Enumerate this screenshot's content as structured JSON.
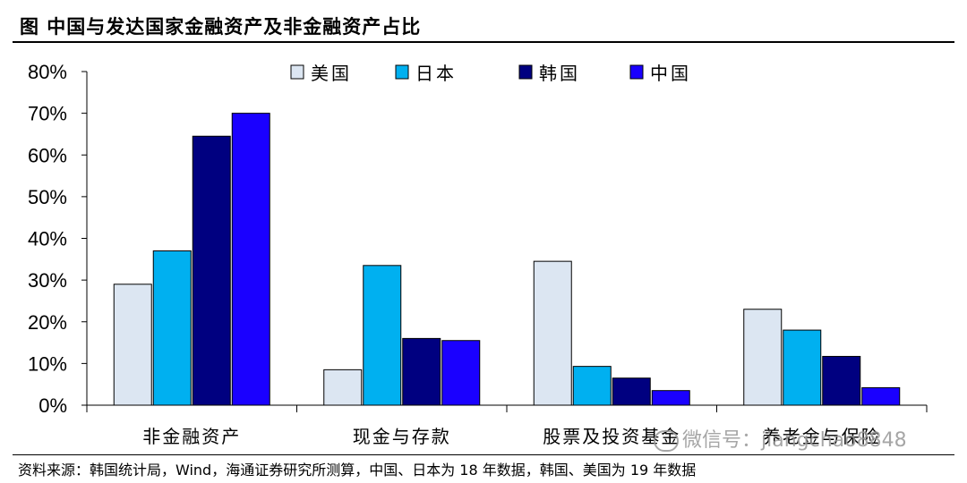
{
  "header": {
    "title": "图  中国与发达国家金融资产及非金融资产占比"
  },
  "footer": {
    "source": "资料来源：韩国统计局，Wind，海通证券研究所测算，中国、日本为 18 年数据，韩国、美国为 19 年数据",
    "watermark": "微信号：jiangchao8848"
  },
  "chart_data": {
    "type": "bar",
    "categories": [
      "非金融资产",
      "现金与存款",
      "股票及投资基金",
      "养老金与保险"
    ],
    "series": [
      {
        "name": "美国",
        "color": "#dce6f2",
        "values": [
          29,
          8.5,
          34.5,
          23
        ]
      },
      {
        "name": "日本",
        "color": "#00b0f0",
        "values": [
          37,
          33.5,
          9.3,
          18
        ]
      },
      {
        "name": "韩国",
        "color": "#000080",
        "values": [
          64.5,
          16,
          6.5,
          11.7
        ]
      },
      {
        "name": "中国",
        "color": "#1a00ff",
        "values": [
          70,
          15.5,
          3.5,
          4.2
        ]
      }
    ],
    "yticks": [
      "0%",
      "10%",
      "20%",
      "30%",
      "40%",
      "50%",
      "60%",
      "70%",
      "80%"
    ],
    "ylim": [
      0,
      80
    ],
    "grid": false,
    "legend_position": "top-center"
  }
}
